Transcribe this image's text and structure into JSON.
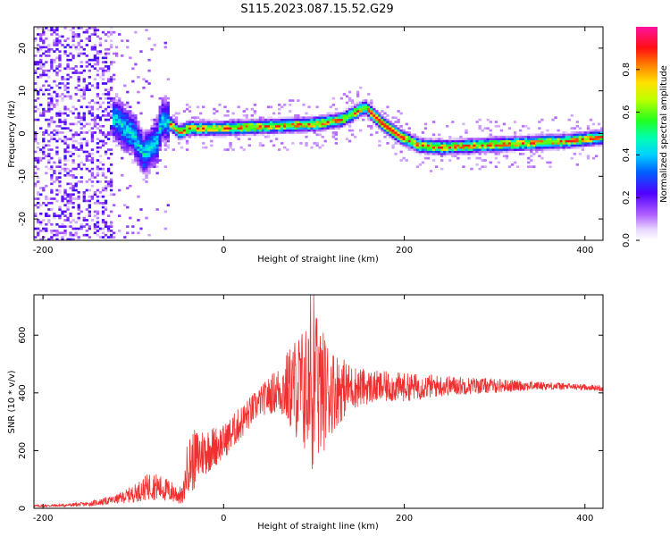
{
  "title": "S115.2023.087.15.52.G29",
  "colors": {
    "line": "#f03030",
    "axes": "#000000",
    "background": "#ffffff"
  },
  "chart_data": [
    {
      "type": "heatmap",
      "xlabel": "Height of straight line (km)",
      "ylabel": "Frequency (Hz)",
      "xlim": [
        -210,
        420
      ],
      "ylim": [
        -25,
        25
      ],
      "xticks": [
        -200,
        0,
        200,
        400
      ],
      "yticks": [
        -20,
        -10,
        0,
        10,
        20
      ],
      "grid": false,
      "colorbar": {
        "label": "Normalized spectral amplitude",
        "range": [
          0.0,
          1.0
        ],
        "ticks": [
          0.0,
          0.2,
          0.4,
          0.6,
          0.8
        ],
        "colormap": "hsv-like: white/lavender - violet - blue - cyan - green - yellow - orange - red - magenta"
      },
      "ridge": {
        "x": [
          -140,
          -120,
          -100,
          -90,
          -80,
          -75,
          -70,
          -60,
          -50,
          -40,
          0,
          50,
          100,
          130,
          155,
          175,
          195,
          215,
          240,
          280,
          330,
          380,
          420
        ],
        "y": [
          5,
          3,
          -1,
          -5,
          -3,
          -2,
          3,
          2,
          0,
          1,
          1,
          1.5,
          2,
          3,
          6,
          2,
          -1,
          -3,
          -3.5,
          -3,
          -2.5,
          -2,
          -1
        ]
      }
    },
    {
      "type": "line",
      "xlabel": "Height of straight line (km)",
      "ylabel": "SNR (10 * v/v)",
      "xlim": [
        -210,
        420
      ],
      "ylim": [
        0,
        740
      ],
      "xticks": [
        -200,
        0,
        200,
        400
      ],
      "yticks": [
        0,
        200,
        400,
        600
      ],
      "grid": false,
      "series": [
        {
          "envelope_x": [
            -210,
            -180,
            -150,
            -120,
            -100,
            -80,
            -60,
            -45,
            -40,
            -35,
            -25,
            0,
            20,
            40,
            60,
            80,
            100,
            120,
            140,
            160,
            200,
            250,
            300,
            350,
            400,
            420
          ],
          "envelope_mean": [
            8,
            10,
            15,
            30,
            50,
            80,
            60,
            40,
            150,
            160,
            190,
            230,
            300,
            370,
            410,
            420,
            400,
            410,
            420,
            420,
            420,
            425,
            425,
            425,
            420,
            415
          ],
          "envelope_amp": [
            4,
            5,
            8,
            15,
            30,
            50,
            40,
            30,
            90,
            110,
            90,
            60,
            60,
            50,
            80,
            180,
            280,
            150,
            80,
            60,
            50,
            35,
            25,
            15,
            10,
            10
          ]
        }
      ]
    }
  ]
}
